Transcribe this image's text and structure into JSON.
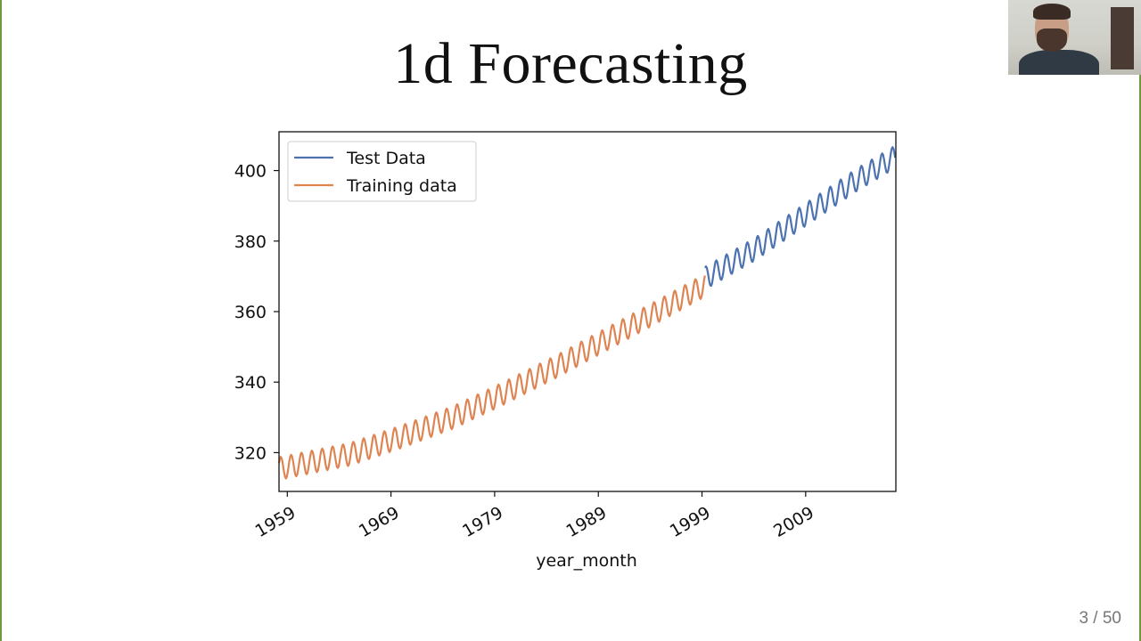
{
  "slide": {
    "title": "1d Forecasting",
    "page": "3 / 50"
  },
  "colors": {
    "test": "#4c72b0",
    "train": "#dd8452",
    "frame": "#6d9a3c"
  },
  "chart_data": {
    "type": "line",
    "title": "",
    "xlabel": "year_month",
    "ylabel": "",
    "xlim": [
      1958.2,
      2017.7
    ],
    "ylim": [
      309,
      411
    ],
    "x_ticks": [
      "1959",
      "1969",
      "1979",
      "1989",
      "1999",
      "2009"
    ],
    "y_ticks": [
      "320",
      "340",
      "360",
      "380",
      "400"
    ],
    "grid": false,
    "legend_position": "top-left",
    "series": [
      {
        "name": "Training data",
        "color": "#dd8452",
        "x_start": 1958.2,
        "x_end": 1999.3,
        "trend_x": [
          1958.2,
          1965,
          1970,
          1975,
          1980,
          1985,
          1990,
          1995,
          1999.3
        ],
        "trend_y": [
          315.5,
          319.5,
          324.5,
          330.0,
          337.0,
          344.5,
          352.5,
          360.5,
          367.5
        ],
        "seasonal_amplitude": 3.2,
        "frequency": "monthly"
      },
      {
        "name": "Test Data",
        "color": "#4c72b0",
        "x_start": 1999.3,
        "x_end": 2017.7,
        "trend_x": [
          1999.3,
          2004,
          2009,
          2014,
          2017.7
        ],
        "trend_y": [
          369.5,
          377.5,
          387.5,
          397.5,
          404.0
        ],
        "seasonal_amplitude": 3.2,
        "frequency": "monthly"
      }
    ]
  }
}
